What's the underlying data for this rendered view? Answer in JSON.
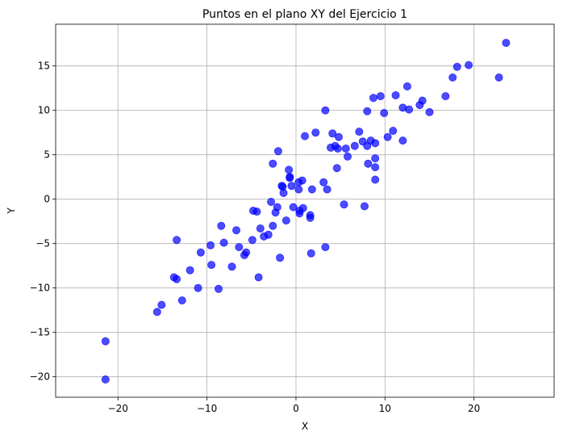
{
  "chart_data": {
    "type": "scatter",
    "title": "Puntos en el plano XY del Ejercicio 1",
    "xlabel": "X",
    "ylabel": "Y",
    "xlim": [
      -27,
      29
    ],
    "ylim": [
      -22.3,
      19.7
    ],
    "xticks": [
      -20,
      -10,
      0,
      10,
      20
    ],
    "yticks": [
      -20,
      -15,
      -10,
      -5,
      0,
      5,
      10,
      15
    ],
    "grid": true,
    "marker_color": "#0000ff",
    "marker_alpha": 0.7,
    "points": [
      [
        -21.4,
        -16.0
      ],
      [
        -21.4,
        -20.3
      ],
      [
        -15.6,
        -12.7
      ],
      [
        -15.1,
        -11.9
      ],
      [
        -13.7,
        -8.8
      ],
      [
        -13.4,
        -9.0
      ],
      [
        -13.4,
        -4.6
      ],
      [
        -12.8,
        -11.4
      ],
      [
        -11.9,
        -8.0
      ],
      [
        -11.0,
        -10.0
      ],
      [
        -10.7,
        -6.0
      ],
      [
        -9.6,
        -5.2
      ],
      [
        -9.5,
        -7.4
      ],
      [
        -8.7,
        -10.1
      ],
      [
        -8.4,
        -3.0
      ],
      [
        -8.1,
        -4.9
      ],
      [
        -7.2,
        -7.6
      ],
      [
        -6.7,
        -3.5
      ],
      [
        -6.4,
        -5.4
      ],
      [
        -5.8,
        -6.3
      ],
      [
        -5.6,
        -6.0
      ],
      [
        -4.9,
        -4.6
      ],
      [
        -4.8,
        -1.3
      ],
      [
        -4.4,
        -1.4
      ],
      [
        -4.2,
        -8.8
      ],
      [
        -4.0,
        -3.3
      ],
      [
        -3.6,
        -4.2
      ],
      [
        -3.1,
        -4.0
      ],
      [
        -2.8,
        -0.3
      ],
      [
        -2.6,
        -3.0
      ],
      [
        -2.6,
        4.0
      ],
      [
        -2.3,
        -1.5
      ],
      [
        -2.1,
        -0.9
      ],
      [
        -2.0,
        5.4
      ],
      [
        -1.8,
        -6.6
      ],
      [
        -1.6,
        1.5
      ],
      [
        -1.5,
        1.4
      ],
      [
        -1.4,
        0.7
      ],
      [
        -1.1,
        -2.4
      ],
      [
        -0.8,
        3.3
      ],
      [
        -0.7,
        2.4
      ],
      [
        -0.7,
        2.5
      ],
      [
        -0.5,
        1.5
      ],
      [
        -0.3,
        -0.9
      ],
      [
        0.3,
        1.9
      ],
      [
        0.3,
        1.1
      ],
      [
        0.4,
        -1.3
      ],
      [
        0.4,
        -1.6
      ],
      [
        0.7,
        2.1
      ],
      [
        0.8,
        -1.0
      ],
      [
        1.0,
        7.1
      ],
      [
        1.6,
        -1.8
      ],
      [
        1.6,
        -2.1
      ],
      [
        1.7,
        -6.1
      ],
      [
        1.8,
        1.1
      ],
      [
        2.2,
        7.5
      ],
      [
        3.1,
        1.9
      ],
      [
        3.3,
        -5.4
      ],
      [
        3.3,
        10.0
      ],
      [
        3.5,
        1.1
      ],
      [
        3.9,
        5.8
      ],
      [
        4.1,
        7.4
      ],
      [
        4.4,
        6.0
      ],
      [
        4.6,
        3.5
      ],
      [
        4.7,
        5.7
      ],
      [
        4.8,
        7.0
      ],
      [
        5.4,
        -0.6
      ],
      [
        5.6,
        5.7
      ],
      [
        5.8,
        4.8
      ],
      [
        6.6,
        6.0
      ],
      [
        7.1,
        7.6
      ],
      [
        7.5,
        6.5
      ],
      [
        7.7,
        -0.8
      ],
      [
        8.0,
        9.9
      ],
      [
        8.0,
        6.0
      ],
      [
        8.1,
        4.0
      ],
      [
        8.4,
        6.6
      ],
      [
        8.7,
        11.4
      ],
      [
        8.9,
        3.6
      ],
      [
        8.9,
        4.6
      ],
      [
        8.9,
        2.2
      ],
      [
        8.9,
        6.3
      ],
      [
        9.5,
        11.6
      ],
      [
        9.9,
        9.7
      ],
      [
        10.3,
        7.0
      ],
      [
        10.9,
        7.7
      ],
      [
        11.2,
        11.7
      ],
      [
        12.0,
        10.3
      ],
      [
        12.0,
        6.6
      ],
      [
        12.5,
        12.7
      ],
      [
        12.7,
        10.1
      ],
      [
        13.9,
        10.6
      ],
      [
        14.2,
        11.1
      ],
      [
        15.0,
        9.8
      ],
      [
        16.8,
        11.6
      ],
      [
        17.6,
        13.7
      ],
      [
        18.1,
        14.9
      ],
      [
        19.4,
        15.1
      ],
      [
        22.8,
        13.7
      ],
      [
        23.6,
        17.6
      ]
    ]
  }
}
